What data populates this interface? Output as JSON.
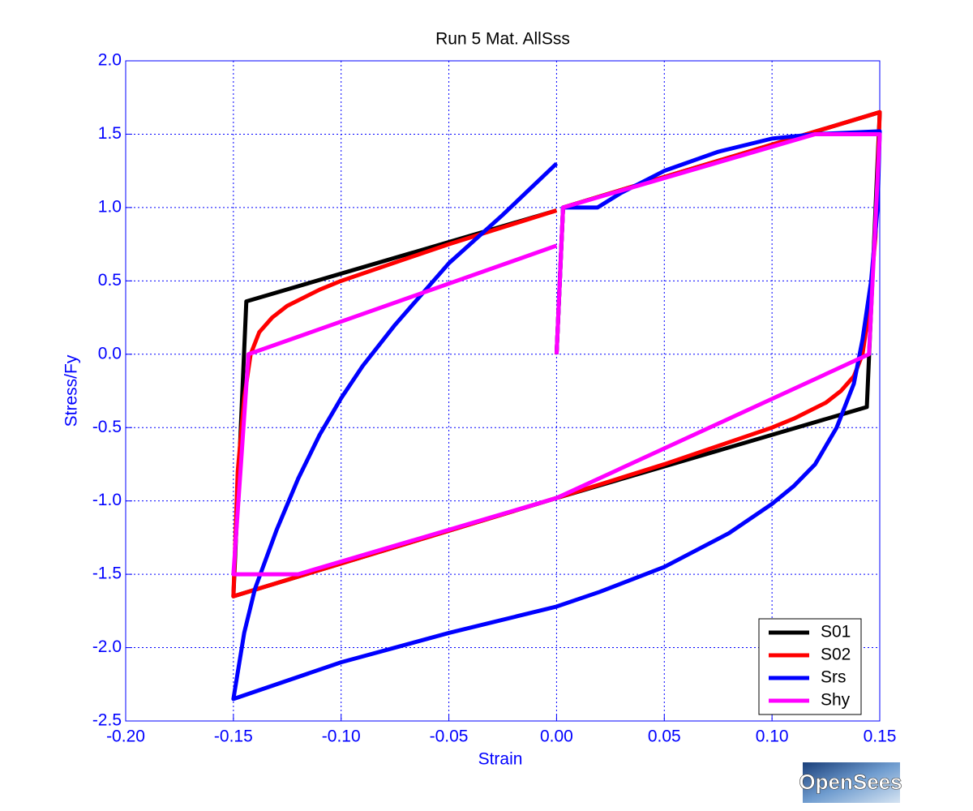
{
  "chart_data": {
    "type": "line",
    "title": "Run 5   Mat. AllSss",
    "x_label": "Strain",
    "y_label": "Stress/Fy",
    "watermark": "OpenSees",
    "grid": true,
    "legend": "lower right",
    "xlim": [
      -0.2,
      0.15
    ],
    "ylim": [
      -2.5,
      2.0
    ],
    "xticks": [
      {
        "value": -0.2,
        "label": "-0.20"
      },
      -0.15,
      {
        "value": -0.1,
        "label": "-0.10"
      },
      -0.05,
      {
        "value": 0,
        "label": "0.00"
      },
      0.05,
      {
        "value": 0.1,
        "label": "0.10"
      },
      0.15
    ],
    "yticks": [
      {
        "value": -2.5,
        "label": "-2.5"
      },
      {
        "value": -2,
        "label": "-2.0"
      },
      -1.5,
      {
        "value": -1,
        "label": "-1.0"
      },
      -0.5,
      {
        "value": 0,
        "label": "0.0"
      },
      0.5,
      {
        "value": 1,
        "label": "1.0"
      },
      1.5,
      {
        "value": 2,
        "label": "2.0"
      }
    ],
    "series": [
      {
        "name": "S01",
        "color": "#000000",
        "x": [
          0,
          0.003,
          0.15,
          0.144,
          0,
          -0.15,
          -0.144,
          0
        ],
        "values": [
          0,
          1.0,
          1.65,
          -0.36,
          -0.98,
          -1.65,
          0.36,
          0.98
        ]
      },
      {
        "name": "S02",
        "color": "#ff0000",
        "x": [
          0,
          0.003,
          0.15,
          0.148,
          0.145,
          0.142,
          0.138,
          0.132,
          0.125,
          0.11,
          0.1,
          0.05,
          0,
          -0.15,
          -0.148,
          -0.145,
          -0.142,
          -0.138,
          -0.132,
          -0.125,
          -0.11,
          -0.1,
          -0.05,
          0
        ],
        "values": [
          0,
          1.0,
          1.65,
          0.8,
          0.3,
          0.0,
          -0.15,
          -0.25,
          -0.33,
          -0.44,
          -0.5,
          -0.75,
          -0.98,
          -1.65,
          -0.8,
          -0.3,
          0.0,
          0.15,
          0.25,
          0.33,
          0.44,
          0.5,
          0.75,
          0.98
        ]
      },
      {
        "name": "Srs",
        "color": "#0000ff",
        "x": [
          0,
          0.003,
          0.019,
          0.03,
          0.05,
          0.075,
          0.1,
          0.12,
          0.15,
          0.149,
          0.146,
          0.142,
          0.138,
          0.13,
          0.12,
          0.11,
          0.1,
          0.08,
          0.05,
          0.02,
          0,
          -0.05,
          -0.1,
          -0.15,
          -0.145,
          -0.14,
          -0.13,
          -0.12,
          -0.11,
          -0.1,
          -0.09,
          -0.075,
          -0.05,
          -0.025,
          0
        ],
        "values": [
          0,
          1.0,
          1.0,
          1.1,
          1.25,
          1.38,
          1.47,
          1.5,
          1.52,
          1.0,
          0.5,
          0.1,
          -0.2,
          -0.5,
          -0.75,
          -0.9,
          -1.02,
          -1.22,
          -1.45,
          -1.62,
          -1.72,
          -1.9,
          -2.1,
          -2.35,
          -1.9,
          -1.6,
          -1.2,
          -0.85,
          -0.55,
          -0.3,
          -0.08,
          0.2,
          0.62,
          0.95,
          1.3
        ]
      },
      {
        "name": "Shy",
        "color": "#ff00ff",
        "x": [
          0,
          0.003,
          0.12,
          0.15,
          0.145,
          0,
          -0.12,
          -0.15,
          -0.143,
          0
        ],
        "values": [
          0,
          1.0,
          1.5,
          1.5,
          0.0,
          -0.98,
          -1.5,
          -1.5,
          0.0,
          0.74
        ]
      }
    ]
  }
}
